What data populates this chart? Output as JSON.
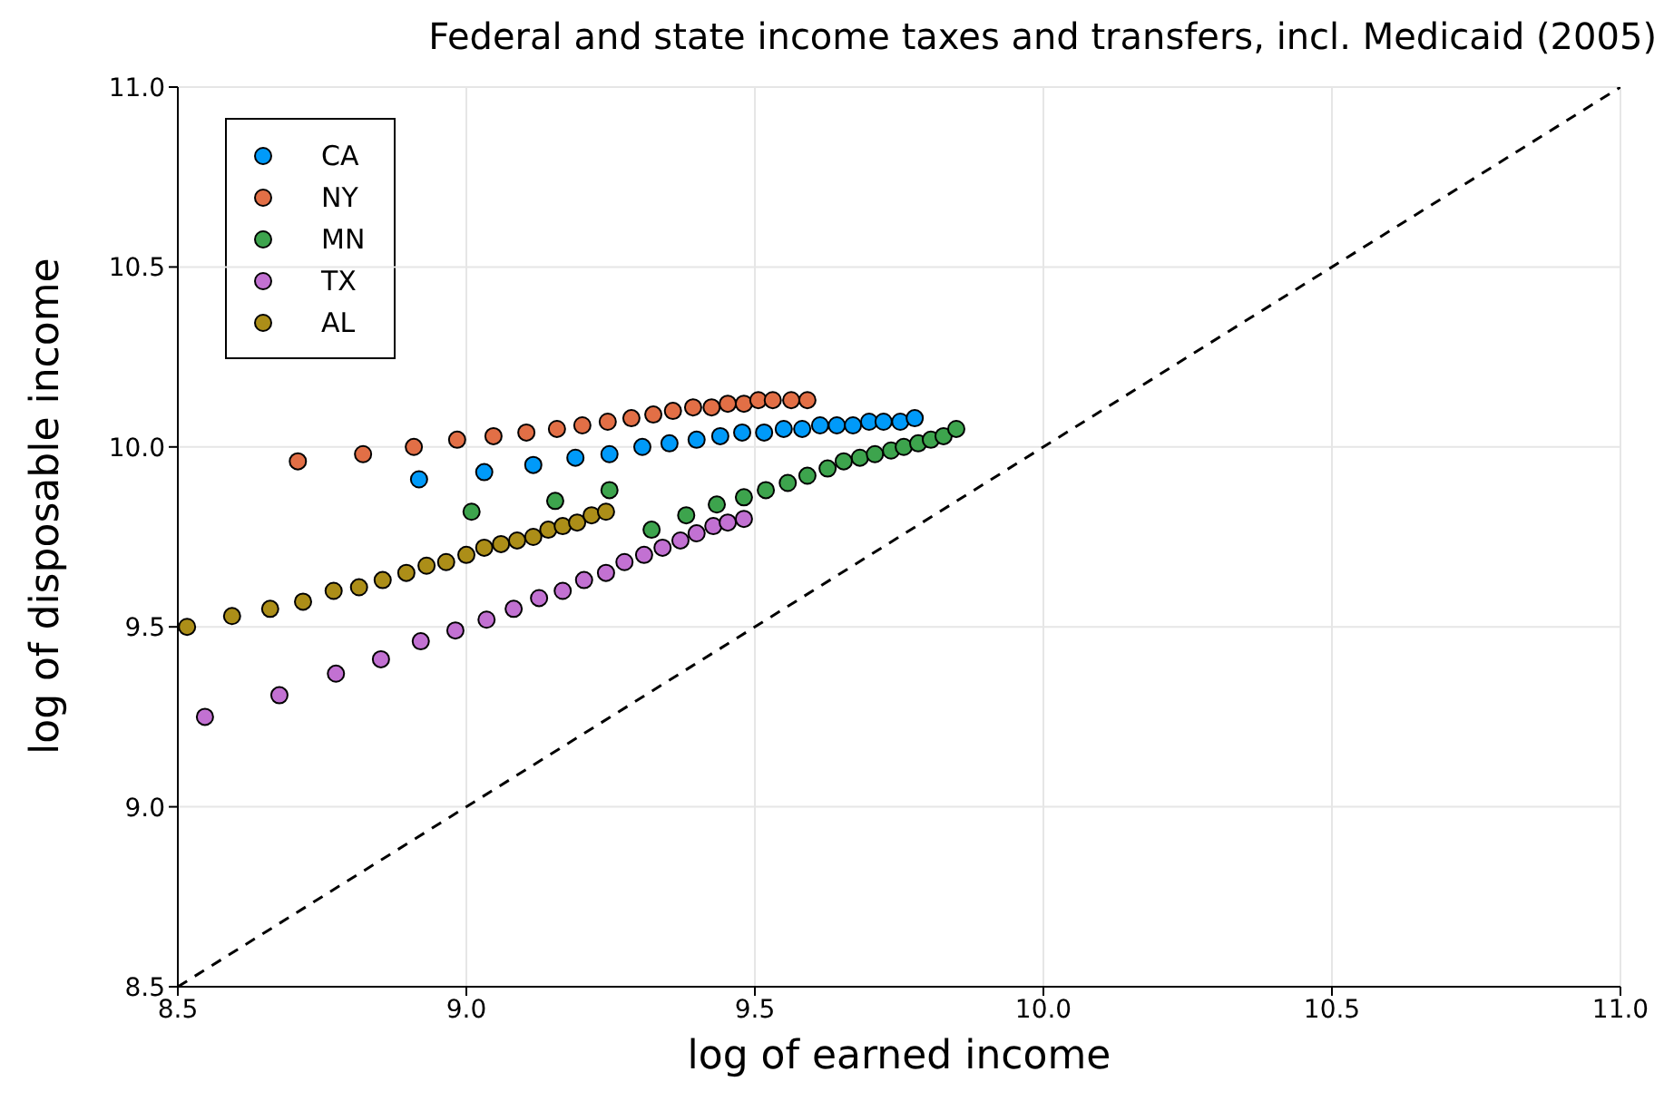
{
  "chart_data": {
    "type": "scatter",
    "title": "Federal and state income taxes and transfers, incl. Medicaid (2005)",
    "xlabel": "log of earned income",
    "ylabel": "log of disposable income",
    "xlim": [
      8.5,
      11.0
    ],
    "ylim": [
      8.5,
      11.0
    ],
    "xticks": [
      8.5,
      {
        "value": 9,
        "label": "9.0"
      },
      9.5,
      {
        "value": 10,
        "label": "10.0"
      },
      10.5,
      {
        "value": 11,
        "label": "11.0"
      }
    ],
    "yticks": [
      8.5,
      {
        "value": 9,
        "label": "9.0"
      },
      9.5,
      {
        "value": 10,
        "label": "10.0"
      },
      10.5,
      {
        "value": 11,
        "label": "11.0"
      }
    ],
    "grid": true,
    "legend": "top left",
    "marker": "circle",
    "series": [
      {
        "name": "CA",
        "color": "#009af9",
        "x": [
          8.918,
          9.031,
          9.116,
          9.189,
          9.248,
          9.305,
          9.352,
          9.399,
          9.44,
          9.478,
          9.516,
          9.55,
          9.582,
          9.613,
          9.642,
          9.67,
          9.698,
          9.723,
          9.752,
          9.777
        ],
        "values": [
          9.91,
          9.93,
          9.95,
          9.97,
          9.98,
          10.0,
          10.01,
          10.02,
          10.03,
          10.04,
          10.04,
          10.05,
          10.05,
          10.06,
          10.06,
          10.06,
          10.07,
          10.07,
          10.07,
          10.08
        ]
      },
      {
        "name": "NY",
        "color": "#e26f46",
        "x": [
          8.708,
          8.821,
          8.909,
          8.984,
          9.047,
          9.104,
          9.157,
          9.201,
          9.245,
          9.286,
          9.324,
          9.358,
          9.393,
          9.425,
          9.453,
          9.481,
          9.506,
          9.531,
          9.563,
          9.591
        ],
        "values": [
          9.96,
          9.98,
          10.0,
          10.02,
          10.03,
          10.04,
          10.05,
          10.06,
          10.07,
          10.08,
          10.09,
          10.1,
          10.11,
          10.11,
          10.12,
          10.12,
          10.13,
          10.13,
          10.13,
          10.13
        ]
      },
      {
        "name": "MN",
        "color": "#3da44d",
        "x": [
          9.009,
          9.154,
          9.248,
          9.321,
          9.381,
          9.434,
          9.481,
          9.519,
          9.557,
          9.591,
          9.626,
          9.654,
          9.682,
          9.708,
          9.736,
          9.758,
          9.783,
          9.805,
          9.827,
          9.849
        ],
        "values": [
          9.82,
          9.85,
          9.88,
          9.77,
          9.81,
          9.84,
          9.86,
          9.88,
          9.9,
          9.92,
          9.94,
          9.96,
          9.97,
          9.98,
          9.99,
          10.0,
          10.01,
          10.02,
          10.03,
          10.05
        ]
      },
      {
        "name": "TX",
        "color": "#c271d2",
        "x": [
          8.547,
          8.676,
          8.774,
          8.852,
          8.921,
          8.981,
          9.035,
          9.082,
          9.126,
          9.167,
          9.204,
          9.242,
          9.274,
          9.308,
          9.34,
          9.371,
          9.399,
          9.428,
          9.453,
          9.481
        ],
        "values": [
          9.25,
          9.31,
          9.37,
          9.41,
          9.46,
          9.49,
          9.52,
          9.55,
          9.58,
          9.6,
          9.63,
          9.65,
          9.68,
          9.7,
          9.72,
          9.74,
          9.76,
          9.78,
          9.79,
          9.8
        ]
      },
      {
        "name": "AL",
        "color": "#ac8e18",
        "x": [
          8.516,
          8.594,
          8.66,
          8.717,
          8.77,
          8.814,
          8.855,
          8.896,
          8.931,
          8.965,
          9.0,
          9.031,
          9.06,
          9.088,
          9.116,
          9.142,
          9.167,
          9.192,
          9.217,
          9.242
        ],
        "values": [
          9.5,
          9.53,
          9.55,
          9.57,
          9.6,
          9.61,
          9.63,
          9.65,
          9.67,
          9.68,
          9.7,
          9.72,
          9.73,
          9.74,
          9.75,
          9.77,
          9.78,
          9.79,
          9.81,
          9.82
        ]
      },
      {
        "type": "line",
        "color": "#000000",
        "line_style": "dashed",
        "marker": "none",
        "x": [
          8.5,
          11.0
        ],
        "values": [
          8.5,
          11.0
        ]
      }
    ]
  }
}
